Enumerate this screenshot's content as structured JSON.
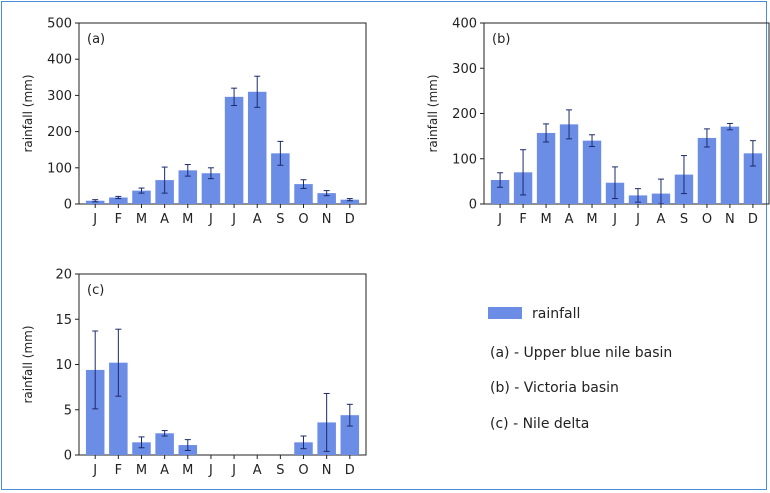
{
  "chart_data": [
    {
      "type": "bar",
      "panel_label": "(a)",
      "categories": [
        "J",
        "F",
        "M",
        "A",
        "M",
        "J",
        "J",
        "A",
        "S",
        "O",
        "N",
        "D"
      ],
      "series": [
        {
          "name": "rainfall",
          "values": [
            9,
            18,
            37,
            66,
            93,
            85,
            296,
            310,
            140,
            55,
            30,
            12
          ],
          "error": [
            3,
            3,
            7,
            36,
            16,
            15,
            24,
            43,
            33,
            12,
            7,
            3
          ]
        }
      ],
      "ylabel": "rainfall (mm)",
      "ylim": [
        0,
        500
      ],
      "yticks": [
        0,
        100,
        200,
        300,
        400,
        500
      ],
      "grid": false
    },
    {
      "type": "bar",
      "panel_label": "(b)",
      "categories": [
        "J",
        "F",
        "M",
        "A",
        "M",
        "J",
        "J",
        "A",
        "S",
        "O",
        "N",
        "D"
      ],
      "series": [
        {
          "name": "rainfall",
          "values": [
            53,
            70,
            157,
            176,
            140,
            47,
            19,
            23,
            65,
            146,
            171,
            112
          ],
          "error": [
            16,
            50,
            20,
            32,
            13,
            35,
            15,
            32,
            42,
            20,
            7,
            28
          ]
        }
      ],
      "ylabel": "rainfall (mm)",
      "ylim": [
        0,
        400
      ],
      "yticks": [
        0,
        100,
        200,
        300,
        400
      ],
      "grid": false
    },
    {
      "type": "bar",
      "panel_label": "(c)",
      "categories": [
        "J",
        "F",
        "M",
        "A",
        "M",
        "J",
        "J",
        "A",
        "S",
        "O",
        "N",
        "D"
      ],
      "series": [
        {
          "name": "rainfall",
          "values": [
            9.4,
            10.2,
            1.4,
            2.4,
            1.1,
            0,
            0,
            0,
            0,
            1.4,
            3.6,
            4.4
          ],
          "error": [
            4.3,
            3.7,
            0.6,
            0.3,
            0.6,
            0,
            0,
            0,
            0,
            0.7,
            3.2,
            1.2
          ]
        }
      ],
      "ylabel": "rainfall (mm)",
      "ylim": [
        0,
        20
      ],
      "yticks": [
        0,
        5,
        10,
        15,
        20
      ],
      "grid": false
    }
  ],
  "legend": {
    "series_name": "rainfall",
    "entries": [
      "(a) - Upper blue nile basin",
      "(b) - Victoria basin",
      "(c) - Nile delta"
    ]
  },
  "colors": {
    "bar": "#6b8de6",
    "error_bar": "#1b2a6b",
    "axis": "#222222",
    "frame": "#4a8fd6"
  }
}
